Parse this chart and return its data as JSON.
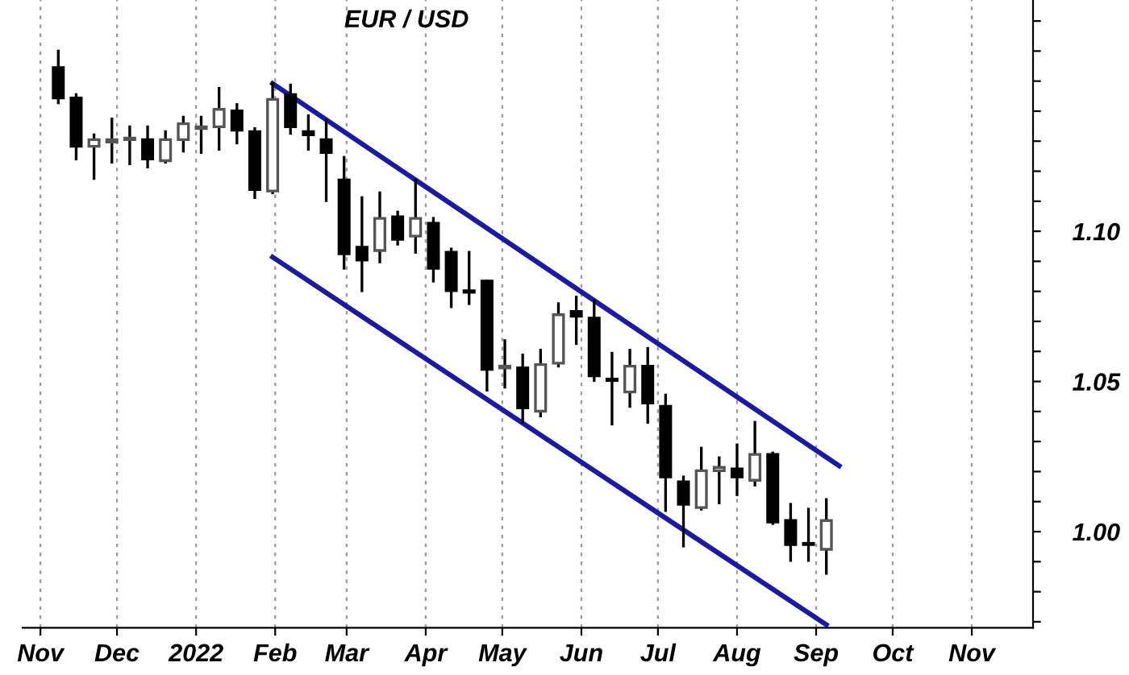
{
  "chart_data": {
    "type": "candlestick",
    "title": "EUR / USD",
    "x": [
      "2021-11-08",
      "2021-11-15",
      "2021-11-22",
      "2021-11-29",
      "2021-12-06",
      "2021-12-13",
      "2021-12-20",
      "2021-12-27",
      "2022-01-03",
      "2022-01-10",
      "2022-01-17",
      "2022-01-24",
      "2022-01-31",
      "2022-02-07",
      "2022-02-14",
      "2022-02-21",
      "2022-02-28",
      "2022-03-07",
      "2022-03-14",
      "2022-03-21",
      "2022-03-28",
      "2022-04-04",
      "2022-04-11",
      "2022-04-18",
      "2022-04-25",
      "2022-05-02",
      "2022-05-09",
      "2022-05-16",
      "2022-05-23",
      "2022-05-30",
      "2022-06-06",
      "2022-06-13",
      "2022-06-20",
      "2022-06-27",
      "2022-07-04",
      "2022-07-11",
      "2022-07-18",
      "2022-07-25",
      "2022-08-01",
      "2022-08-08",
      "2022-08-15",
      "2022-08-22",
      "2022-08-29",
      "2022-09-05"
    ],
    "ohlc": [
      [
        1.1545,
        1.16,
        1.1428,
        1.1444
      ],
      [
        1.1444,
        1.1455,
        1.1241,
        1.1283
      ],
      [
        1.1283,
        1.1321,
        1.1176,
        1.1305
      ],
      [
        1.1297,
        1.1374,
        1.123,
        1.1305
      ],
      [
        1.1305,
        1.1348,
        1.1225,
        1.131
      ],
      [
        1.1305,
        1.1348,
        1.1214,
        1.1241
      ],
      [
        1.1235,
        1.1332,
        1.123,
        1.1305
      ],
      [
        1.1305,
        1.138,
        1.1267,
        1.1358
      ],
      [
        1.1342,
        1.138,
        1.1262,
        1.1348
      ],
      [
        1.1348,
        1.1476,
        1.1273,
        1.1406
      ],
      [
        1.1401,
        1.1422,
        1.1294,
        1.1337
      ],
      [
        1.1332,
        1.1342,
        1.1112,
        1.1139
      ],
      [
        1.1134,
        1.1492,
        1.1128,
        1.1439
      ],
      [
        1.1455,
        1.1487,
        1.1326,
        1.1348
      ],
      [
        1.1332,
        1.1385,
        1.1273,
        1.1321
      ],
      [
        1.1305,
        1.1369,
        1.1102,
        1.1262
      ],
      [
        1.1171,
        1.1246,
        1.0877,
        1.0925
      ],
      [
        1.0947,
        1.1112,
        1.0802,
        1.0904
      ],
      [
        1.0936,
        1.1128,
        1.0898,
        1.1043
      ],
      [
        1.1048,
        1.1064,
        1.0957,
        1.0973
      ],
      [
        1.0984,
        1.1171,
        1.093,
        1.1043
      ],
      [
        1.1027,
        1.1043,
        1.0834,
        1.0877
      ],
      [
        1.093,
        1.0941,
        1.0749,
        1.0802
      ],
      [
        1.0802,
        1.093,
        1.0759,
        1.0797
      ],
      [
        1.0834,
        1.0834,
        1.0471,
        1.054
      ],
      [
        1.0545,
        1.0636,
        1.0481,
        1.0551
      ],
      [
        1.0545,
        1.0588,
        1.0364,
        1.0412
      ],
      [
        1.0401,
        1.0604,
        1.0385,
        1.0556
      ],
      [
        1.0561,
        1.0759,
        1.0551,
        1.0722
      ],
      [
        1.0733,
        1.0781,
        1.0626,
        1.0717
      ],
      [
        1.0711,
        1.077,
        1.0503,
        1.0519
      ],
      [
        1.0508,
        1.0594,
        1.0358,
        1.0503
      ],
      [
        1.0465,
        1.0604,
        1.0417,
        1.0551
      ],
      [
        1.0551,
        1.061,
        1.0364,
        1.0428
      ],
      [
        1.0417,
        1.0455,
        1.007,
        1.0182
      ],
      [
        1.0166,
        1.0182,
        0.9952,
        1.0091
      ],
      [
        1.008,
        1.0278,
        1.0075,
        1.0203
      ],
      [
        1.0203,
        1.0246,
        1.0096,
        1.0214
      ],
      [
        1.0209,
        1.0289,
        1.0123,
        1.0182
      ],
      [
        1.0171,
        1.0364,
        1.0155,
        1.0257
      ],
      [
        1.0257,
        1.0262,
        1.0027,
        1.0032
      ],
      [
        1.0037,
        1.0091,
        0.9904,
        0.9957
      ],
      [
        0.996,
        1.0075,
        0.9904,
        0.9957
      ],
      [
        0.9941,
        1.0107,
        0.9861,
        1.0037
      ]
    ],
    "series": [
      {
        "type": "line",
        "color": "#1a1aa6",
        "x": [
          "2022-01-31",
          "2022-09-10"
        ],
        "values": [
          1.1492,
          1.0219
        ]
      },
      {
        "type": "line",
        "color": "#1a1aa6",
        "x": [
          "2022-01-31",
          "2022-09-05"
        ],
        "values": [
          1.0914,
          0.969
        ]
      }
    ],
    "xlim": [
      "2021-10-25",
      "2022-11-25"
    ],
    "xticks": [
      {
        "value": "2021-11-01",
        "label": "Nov"
      },
      {
        "value": "2021-12-01",
        "label": "Dec"
      },
      {
        "value": "2022-01-01",
        "label": "2022"
      },
      {
        "value": "2022-02-01",
        "label": "Feb"
      },
      {
        "value": "2022-03-01",
        "label": "Mar"
      },
      {
        "value": "2022-04-01",
        "label": "Apr"
      },
      {
        "value": "2022-05-01",
        "label": "May"
      },
      {
        "value": "2022-06-01",
        "label": "Jun"
      },
      {
        "value": "2022-07-01",
        "label": "Jul"
      },
      {
        "value": "2022-08-01",
        "label": "Aug"
      },
      {
        "value": "2022-09-01",
        "label": "Sep"
      },
      {
        "value": "2022-10-01",
        "label": "Oct"
      },
      {
        "value": "2022-11-01",
        "label": "Nov"
      }
    ],
    "ylim": [
      0.968,
      1.177
    ],
    "yticks": [
      {
        "value": 0.97,
        "label": null
      },
      {
        "value": 0.98,
        "label": null
      },
      {
        "value": 0.99,
        "label": null
      },
      {
        "value": 1.0,
        "label": "1.00"
      },
      {
        "value": 1.01,
        "label": null
      },
      {
        "value": 1.02,
        "label": null
      },
      {
        "value": 1.03,
        "label": null
      },
      {
        "value": 1.04,
        "label": null
      },
      {
        "value": 1.05,
        "label": "1.05"
      },
      {
        "value": 1.06,
        "label": null
      },
      {
        "value": 1.07,
        "label": null
      },
      {
        "value": 1.08,
        "label": null
      },
      {
        "value": 1.09,
        "label": null
      },
      {
        "value": 1.1,
        "label": "1.10"
      },
      {
        "value": 1.11,
        "label": null
      },
      {
        "value": 1.12,
        "label": null
      },
      {
        "value": 1.13,
        "label": null
      },
      {
        "value": 1.14,
        "label": null
      },
      {
        "value": 1.15,
        "label": null
      },
      {
        "value": 1.16,
        "label": null
      },
      {
        "value": 1.17,
        "label": null
      }
    ],
    "grid": "x",
    "line_style": "solid"
  }
}
